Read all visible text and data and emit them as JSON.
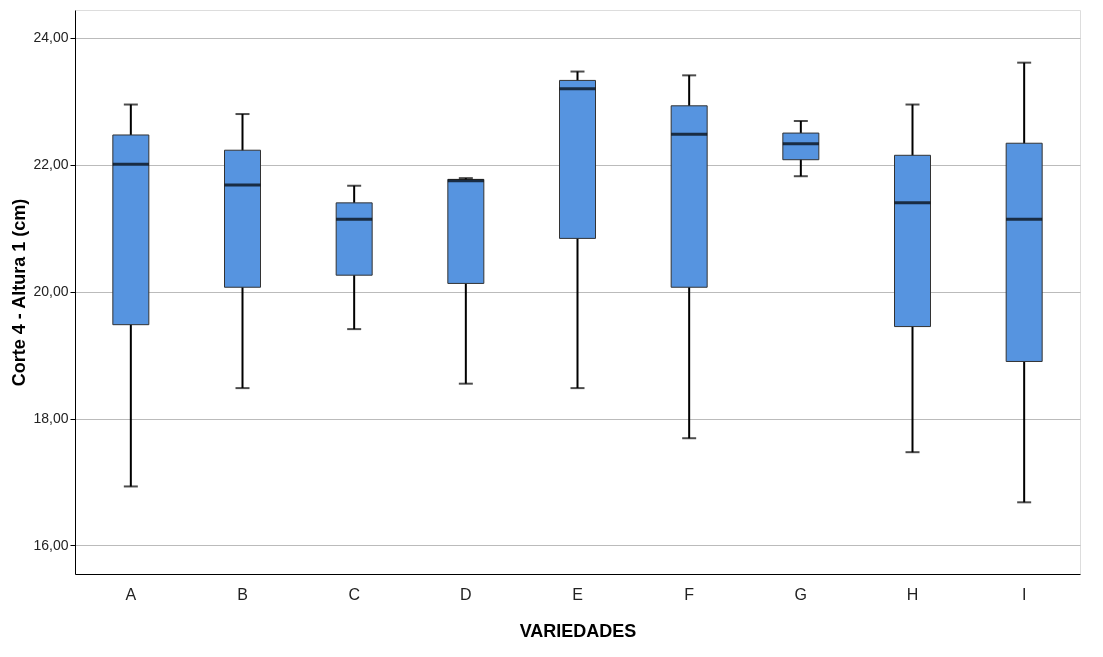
{
  "chart_data": {
    "type": "box",
    "xlabel": "VARIEDADES",
    "ylabel": "Corte 4 - Altura 1 (cm)",
    "categories": [
      "A",
      "B",
      "C",
      "D",
      "E",
      "F",
      "G",
      "H",
      "I"
    ],
    "series": [
      {
        "color": "#5694e0",
        "boxes": [
          {
            "low": 16.93,
            "q1": 19.48,
            "median": 22.01,
            "q3": 22.47,
            "high": 22.95
          },
          {
            "low": 18.48,
            "q1": 20.07,
            "median": 21.68,
            "q3": 22.23,
            "high": 22.8
          },
          {
            "low": 19.41,
            "q1": 20.26,
            "median": 21.14,
            "q3": 21.4,
            "high": 21.67
          },
          {
            "low": 18.55,
            "q1": 20.13,
            "median": 21.75,
            "q3": 21.77,
            "high": 21.79
          },
          {
            "low": 18.48,
            "q1": 20.84,
            "median": 23.2,
            "q3": 23.33,
            "high": 23.47
          },
          {
            "low": 17.69,
            "q1": 20.07,
            "median": 22.48,
            "q3": 22.93,
            "high": 23.41
          },
          {
            "low": 21.82,
            "q1": 22.08,
            "median": 22.33,
            "q3": 22.5,
            "high": 22.69
          },
          {
            "low": 17.47,
            "q1": 19.45,
            "median": 21.4,
            "q3": 22.15,
            "high": 22.95
          },
          {
            "low": 16.68,
            "q1": 18.9,
            "median": 21.14,
            "q3": 22.34,
            "high": 23.61
          }
        ]
      }
    ],
    "ylim": [
      15.55,
      24.44
    ],
    "yticks": [
      {
        "value": 16,
        "label": "16,00"
      },
      {
        "value": 18,
        "label": "18,00"
      },
      {
        "value": 20,
        "label": "20,00"
      },
      {
        "value": 22,
        "label": "22,00"
      },
      {
        "value": 24,
        "label": "24,00"
      }
    ],
    "grid": "y"
  }
}
